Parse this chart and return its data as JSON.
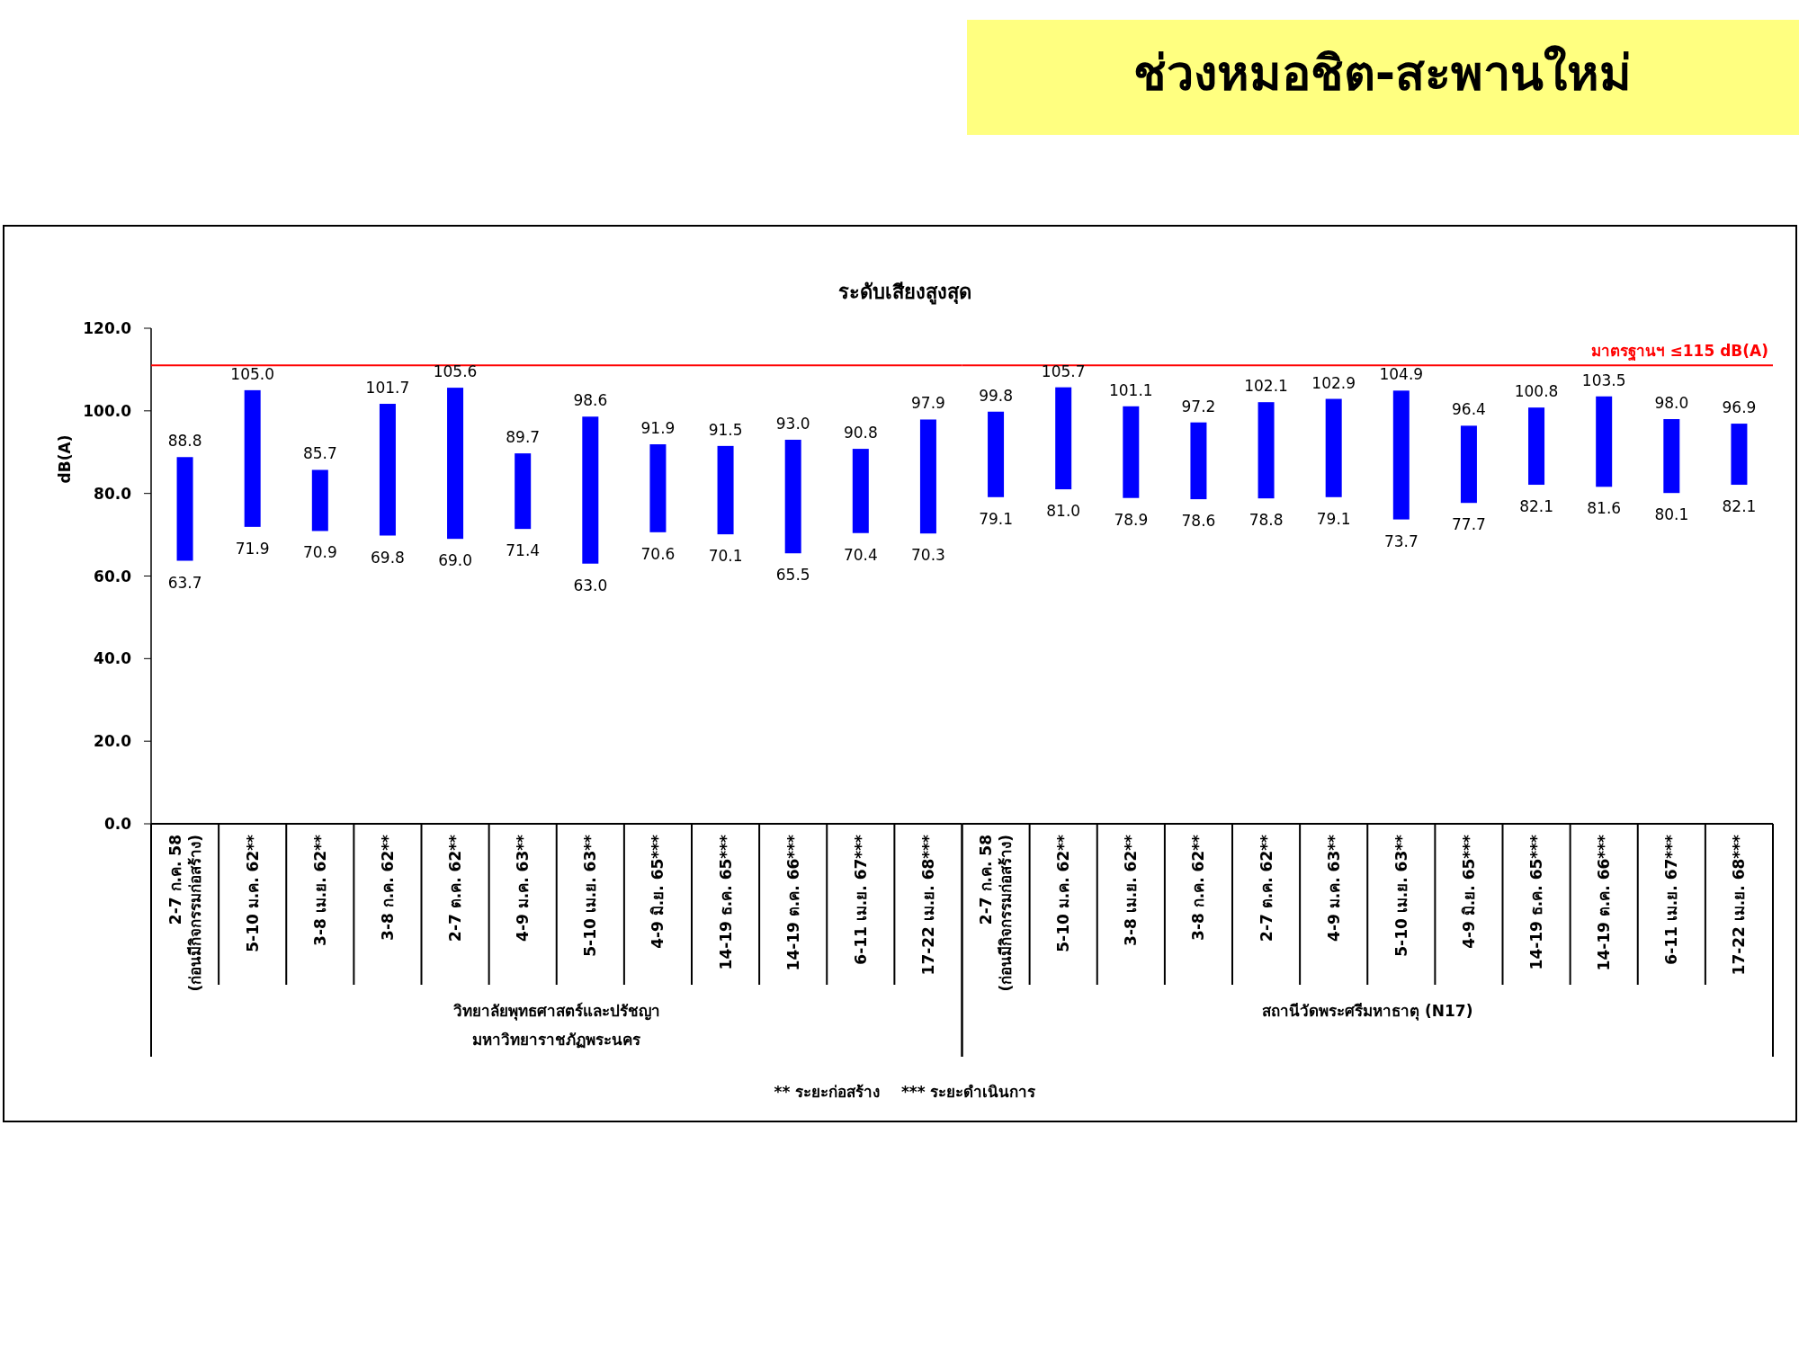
{
  "chart_data": [
    {
      "type": "bar",
      "subtitle": "ระดับเสียงสูงสุด",
      "ylabel": "dB(A)",
      "categories": [
        "2-7 ก.ค. 58\n(ก่อนมีกิจกรรมก่อสร้าง)",
        "5-10 ม.ค. 62**",
        "3-8 เม.ย. 62**",
        "3-8 ก.ค. 62**",
        "2-7 ต.ค. 62**",
        "4-9 ม.ค. 63**",
        "5-10 เม.ย. 63**",
        "4-9 มิ.ย. 65***",
        "14-19 ธ.ค. 65***",
        "14-19 ต.ค. 66***",
        "6-11 เม.ย. 67***",
        "17-22 เม.ย. 68***"
      ],
      "base": [
        63.7,
        71.9,
        70.9,
        69.8,
        69.0,
        71.4,
        63.0,
        70.6,
        70.1,
        65.5,
        70.4,
        70.3
      ],
      "values": [
        25.1,
        33.1,
        14.8,
        31.9,
        36.6,
        18.3,
        35.6,
        21.3,
        21.4,
        27.5,
        20.4,
        27.6
      ],
      "value_labels": [
        "88.8",
        "105.0",
        "85.7",
        "101.7",
        "105.6",
        "89.7",
        "98.6",
        "91.9",
        "91.5",
        "93.0",
        "90.8",
        "97.9"
      ],
      "color": "#0000ff",
      "ylim": [
        0,
        120
      ],
      "yticks": [
        {
          "value": 0,
          "label": "0.0"
        },
        {
          "value": 20,
          "label": "20.0"
        },
        {
          "value": 40,
          "label": "40.0"
        },
        {
          "value": 60,
          "label": "60.0"
        },
        {
          "value": 80,
          "label": "80.0"
        },
        {
          "value": 100,
          "label": "100.0"
        },
        {
          "value": 120,
          "label": "120.0"
        }
      ],
      "ref_lines": [
        {
          "axis": "y",
          "value": 111,
          "color": "#ff0000"
        }
      ],
      "annotations": [
        "วิทยาลัยพุทธศาสตร์และปรัชญา\nมหาวิทยาราชภัฏพระนคร",
        "** ระยะก่อสร้าง    *** ระยะดำเนินการ",
        {
          "text": "63.7",
          "x": "2-7 ก.ค. 58\n(ก่อนมีกิจกรรมก่อสร้าง)",
          "y": 63.7
        },
        {
          "text": "71.9",
          "x": "5-10 ม.ค. 62**",
          "y": 71.9
        },
        {
          "text": "70.9",
          "x": "3-8 เม.ย. 62**",
          "y": 70.9
        },
        {
          "text": "69.8",
          "x": "3-8 ก.ค. 62**",
          "y": 69.8
        },
        {
          "text": "69.0",
          "x": "2-7 ต.ค. 62**",
          "y": 69.0
        },
        {
          "text": "71.4",
          "x": "4-9 ม.ค. 63**",
          "y": 71.4
        },
        {
          "text": "63.0",
          "x": "5-10 เม.ย. 63**",
          "y": 63.0
        },
        {
          "text": "70.6",
          "x": "4-9 มิ.ย. 65***",
          "y": 70.6
        },
        {
          "text": "70.1",
          "x": "14-19 ธ.ค. 65***",
          "y": 70.1
        },
        {
          "text": "65.5",
          "x": "14-19 ต.ค. 66***",
          "y": 65.5
        },
        {
          "text": "70.4",
          "x": "6-11 เม.ย. 67***",
          "y": 70.4
        },
        {
          "text": "70.3",
          "x": "17-22 เม.ย. 68***",
          "y": 70.3
        }
      ]
    },
    {
      "type": "bar",
      "title": "ช่วงหมอชิต-สะพานใหม่",
      "categories": [
        "2-7 ก.ค. 58\n(ก่อนมีกิจกรรมก่อสร้าง)",
        "5-10 ม.ค. 62**",
        "3-8 เม.ย. 62**",
        "3-8 ก.ค. 62**",
        "2-7 ต.ค. 62**",
        "4-9 ม.ค. 63**",
        "5-10 เม.ย. 63**",
        "4-9 มิ.ย. 65***",
        "14-19 ธ.ค. 65***",
        "14-19 ต.ค. 66***",
        "6-11 เม.ย. 67***",
        "17-22 เม.ย. 68***"
      ],
      "base": [
        79.1,
        81.0,
        78.9,
        78.6,
        78.8,
        79.1,
        73.7,
        77.7,
        82.1,
        81.6,
        80.1,
        82.1
      ],
      "values": [
        20.7,
        24.7,
        22.2,
        18.6,
        23.3,
        23.8,
        31.2,
        18.7,
        18.7,
        21.9,
        17.9,
        14.8
      ],
      "value_labels": [
        "99.8",
        "105.7",
        "101.1",
        "97.2",
        "102.1",
        "102.9",
        "104.9",
        "96.4",
        "100.8",
        "103.5",
        "98.0",
        "96.9"
      ],
      "color": "#0000ff",
      "ylim": [
        0,
        120
      ],
      "tick_labels": "x",
      "ref_lines": [
        {
          "axis": "y",
          "value": 111,
          "label": "มาตรฐานฯ ≤115 dB(A)",
          "color": "#ff0000"
        }
      ],
      "annotations": [
        "สถานีวัดพระศรีมหาธาตุ (N17)",
        {
          "text": "79.1",
          "x": "2-7 ก.ค. 58\n(ก่อนมีกิจกรรมก่อสร้าง)",
          "y": 79.1
        },
        {
          "text": "81.0",
          "x": "5-10 ม.ค. 62**",
          "y": 81.0
        },
        {
          "text": "78.9",
          "x": "3-8 เม.ย. 62**",
          "y": 78.9
        },
        {
          "text": "78.6",
          "x": "3-8 ก.ค. 62**",
          "y": 78.6
        },
        {
          "text": "78.8",
          "x": "2-7 ต.ค. 62**",
          "y": 78.8
        },
        {
          "text": "79.1",
          "x": "4-9 ม.ค. 63**",
          "y": 79.1
        },
        {
          "text": "73.7",
          "x": "5-10 เม.ย. 63**",
          "y": 73.7
        },
        {
          "text": "77.7",
          "x": "4-9 มิ.ย. 65***",
          "y": 77.7
        },
        {
          "text": "82.1",
          "x": "14-19 ธ.ค. 65***",
          "y": 82.1
        },
        {
          "text": "81.6",
          "x": "14-19 ต.ค. 66***",
          "y": 81.6
        },
        {
          "text": "80.1",
          "x": "6-11 เม.ย. 67***",
          "y": 80.1
        },
        {
          "text": "82.1",
          "x": "17-22 เม.ย. 68***",
          "y": 82.1
        }
      ]
    }
  ]
}
